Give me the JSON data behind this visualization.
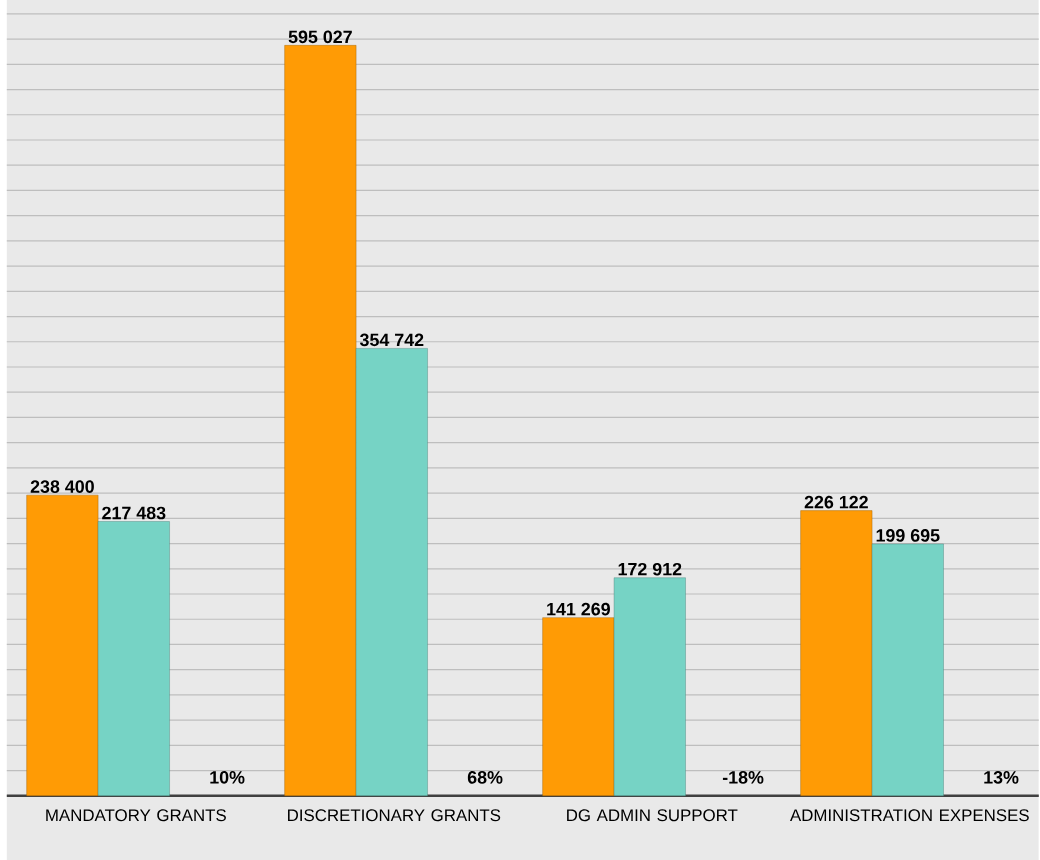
{
  "chart_data": {
    "type": "bar",
    "categories": [
      "MANDATORY GRANTS",
      "DISCRETIONARY GRANTS",
      "DG ADMIN SUPPORT",
      "ADMINISTRATION EXPENSES"
    ],
    "series": [
      {
        "color": "#ff9b05",
        "values": [
          238400,
          595027,
          141269,
          226122
        ],
        "value_labels": [
          "238 400",
          "595 027",
          "141 269",
          "226 122"
        ]
      },
      {
        "color": "#76d3c5",
        "values": [
          217483,
          354742,
          172912,
          199695
        ],
        "value_labels": [
          "217 483",
          "354 742",
          "172 912",
          "199 695"
        ]
      }
    ],
    "ylim": [
      0,
      631000
    ],
    "grid": "y",
    "tick_labels": "x",
    "annotations": [
      "10%",
      "68%",
      "-18%",
      "13%"
    ]
  }
}
